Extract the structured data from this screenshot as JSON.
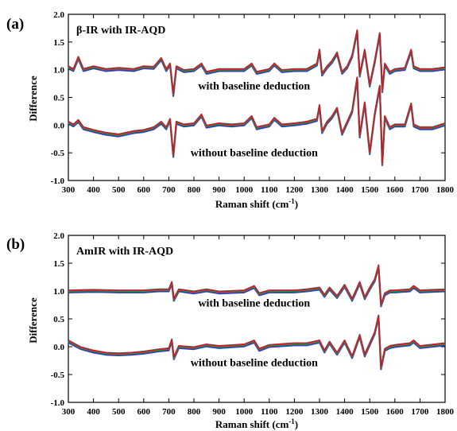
{
  "chart_data": [
    {
      "panel_label": "(a)",
      "title": "β-IR with IR-AQD",
      "type": "line",
      "xlabel": "Raman shift (cm",
      "xlabel_sup": "-1",
      "xlabel_close": ")",
      "ylabel": "Difference",
      "xlim": [
        300,
        1800
      ],
      "ylim": [
        -1.0,
        2.0
      ],
      "xticks": [
        300,
        400,
        500,
        600,
        700,
        800,
        900,
        1000,
        1100,
        1200,
        1300,
        1400,
        1500,
        1600,
        1700,
        1800
      ],
      "yticks": [
        "-1.0",
        "-0.5",
        "0.0",
        "0.5",
        "1.0",
        "1.5",
        "2.0"
      ],
      "ytick_values": [
        -1.0,
        -0.5,
        0.0,
        0.5,
        1.0,
        1.5,
        2.0
      ],
      "annotations": [
        {
          "text": "with baseline deduction",
          "x": 1040,
          "y": 0.64
        },
        {
          "text": "without baseline deduction",
          "x": 1040,
          "y": -0.56
        }
      ],
      "series_colors": [
        "#3a3fa8",
        "#2e8b57",
        "#c0202a"
      ],
      "series": [
        {
          "group": "with baseline deduction",
          "x": [
            300,
            320,
            340,
            360,
            400,
            450,
            500,
            560,
            600,
            640,
            670,
            690,
            705,
            718,
            730,
            760,
            800,
            830,
            850,
            900,
            950,
            1000,
            1030,
            1050,
            1100,
            1120,
            1150,
            1200,
            1250,
            1290,
            1300,
            1310,
            1330,
            1350,
            1370,
            1390,
            1410,
            1430,
            1450,
            1460,
            1480,
            1500,
            1520,
            1540,
            1550,
            1560,
            1580,
            1600,
            1640,
            1665,
            1675,
            1700,
            1750,
            1800
          ],
          "y": [
            1.05,
            1.0,
            1.22,
            1.0,
            1.05,
            1.0,
            1.02,
            1.0,
            1.05,
            1.04,
            1.2,
            1.0,
            1.1,
            0.55,
            1.05,
            0.98,
            1.0,
            1.1,
            0.95,
            1.0,
            1.0,
            1.0,
            1.1,
            0.95,
            1.0,
            1.1,
            0.98,
            1.0,
            1.0,
            1.1,
            1.35,
            0.92,
            1.05,
            1.15,
            1.3,
            0.95,
            1.05,
            1.25,
            1.7,
            0.9,
            1.35,
            0.72,
            1.15,
            1.65,
            0.62,
            1.1,
            0.95,
            1.0,
            1.02,
            1.35,
            1.05,
            1.0,
            1.0,
            1.03
          ]
        },
        {
          "group": "without baseline deduction",
          "x": [
            300,
            320,
            340,
            360,
            400,
            450,
            500,
            560,
            600,
            640,
            670,
            690,
            705,
            718,
            730,
            760,
            800,
            830,
            850,
            900,
            950,
            1000,
            1030,
            1050,
            1100,
            1120,
            1150,
            1200,
            1250,
            1290,
            1300,
            1310,
            1330,
            1350,
            1370,
            1390,
            1410,
            1430,
            1450,
            1460,
            1480,
            1500,
            1520,
            1540,
            1550,
            1560,
            1580,
            1600,
            1640,
            1665,
            1675,
            1700,
            1750,
            1800
          ],
          "y": [
            0.05,
            0.0,
            0.08,
            -0.05,
            -0.1,
            -0.15,
            -0.18,
            -0.12,
            -0.1,
            -0.05,
            0.05,
            -0.05,
            0.1,
            -0.55,
            0.05,
            0.0,
            0.02,
            0.18,
            -0.02,
            0.02,
            0.0,
            0.02,
            0.15,
            -0.05,
            0.0,
            0.12,
            0.0,
            0.02,
            0.05,
            0.1,
            0.35,
            -0.12,
            0.05,
            0.15,
            0.3,
            -0.15,
            0.05,
            0.25,
            0.85,
            -0.2,
            0.4,
            -0.5,
            0.2,
            0.7,
            -0.7,
            0.15,
            -0.05,
            0.0,
            0.0,
            0.38,
            0.0,
            -0.05,
            -0.05,
            0.02
          ]
        }
      ]
    },
    {
      "panel_label": "(b)",
      "title": "AmIR with IR-AQD",
      "type": "line",
      "xlabel": "Raman shift (cm",
      "xlabel_sup": "-1",
      "xlabel_close": ")",
      "ylabel": "Difference",
      "xlim": [
        300,
        1800
      ],
      "ylim": [
        -1.0,
        2.0
      ],
      "xticks": [
        300,
        400,
        500,
        600,
        700,
        800,
        900,
        1000,
        1100,
        1200,
        1300,
        1400,
        1500,
        1600,
        1700,
        1800
      ],
      "yticks": [
        "-1.0",
        "-0.5",
        "0.0",
        "0.5",
        "1.0",
        "1.5",
        "2.0"
      ],
      "ytick_values": [
        -1.0,
        -0.5,
        0.0,
        0.5,
        1.0,
        1.5,
        2.0
      ],
      "annotations": [
        {
          "text": "with baseline deduction",
          "x": 1040,
          "y": 0.72
        },
        {
          "text": "without baseline deduction",
          "x": 1040,
          "y": -0.35
        }
      ],
      "series_colors": [
        "#3a3fa8",
        "#2e8b57",
        "#c0202a"
      ],
      "series": [
        {
          "group": "with baseline deduction",
          "x": [
            300,
            400,
            500,
            600,
            660,
            700,
            712,
            720,
            740,
            800,
            850,
            900,
            1000,
            1040,
            1060,
            1100,
            1200,
            1250,
            1300,
            1320,
            1340,
            1370,
            1400,
            1430,
            1460,
            1480,
            1500,
            1520,
            1535,
            1545,
            1560,
            1580,
            1600,
            1660,
            1675,
            1700,
            1800
          ],
          "y": [
            1.0,
            1.01,
            1.0,
            1.0,
            1.02,
            1.02,
            1.15,
            0.85,
            1.02,
            0.98,
            1.02,
            0.98,
            1.0,
            1.08,
            0.95,
            1.0,
            1.0,
            1.02,
            1.05,
            0.92,
            1.05,
            0.9,
            1.1,
            0.85,
            1.15,
            0.88,
            1.05,
            1.2,
            1.45,
            0.75,
            0.95,
            1.0,
            1.0,
            1.02,
            1.08,
            1.0,
            1.02
          ]
        },
        {
          "group": "without baseline deduction",
          "x": [
            300,
            350,
            400,
            450,
            500,
            550,
            600,
            660,
            700,
            712,
            720,
            740,
            800,
            850,
            900,
            1000,
            1040,
            1060,
            1100,
            1200,
            1250,
            1300,
            1320,
            1340,
            1370,
            1400,
            1430,
            1460,
            1480,
            1500,
            1520,
            1535,
            1545,
            1560,
            1580,
            1600,
            1660,
            1675,
            1700,
            1800
          ],
          "y": [
            0.1,
            -0.02,
            -0.08,
            -0.12,
            -0.13,
            -0.12,
            -0.1,
            -0.06,
            -0.04,
            0.12,
            -0.2,
            0.0,
            -0.02,
            0.03,
            0.0,
            0.03,
            0.1,
            -0.05,
            0.02,
            0.05,
            0.05,
            0.1,
            -0.08,
            0.08,
            -0.12,
            0.1,
            -0.18,
            0.2,
            -0.15,
            0.05,
            0.25,
            0.55,
            -0.38,
            -0.05,
            0.0,
            0.02,
            0.05,
            0.1,
            0.0,
            0.05
          ]
        }
      ]
    }
  ]
}
